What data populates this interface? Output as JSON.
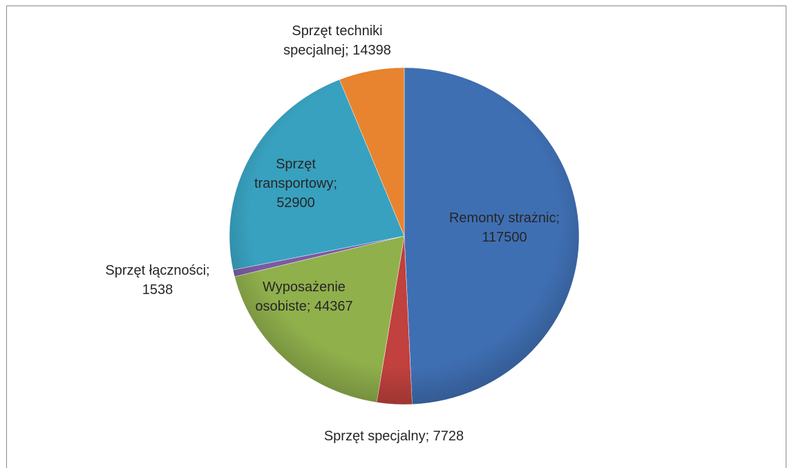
{
  "chart_data": {
    "type": "pie",
    "values": [
      117500,
      7728,
      44367,
      1538,
      52900,
      14398
    ],
    "value_labels": [
      "Remonty strażnic; 117500",
      "Sprzęt specjalny; 7728",
      "Wyposażenie osobiste; 44367",
      "Sprzęt łączności; 1538",
      "Sprzęt transportowy; 52900",
      "Sprzęt techniki specjalnej; 14398"
    ],
    "colors": [
      "#3f6fb3",
      "#c0413d",
      "#90b04c",
      "#7b5ba3",
      "#38a1bf",
      "#e8842f"
    ]
  }
}
